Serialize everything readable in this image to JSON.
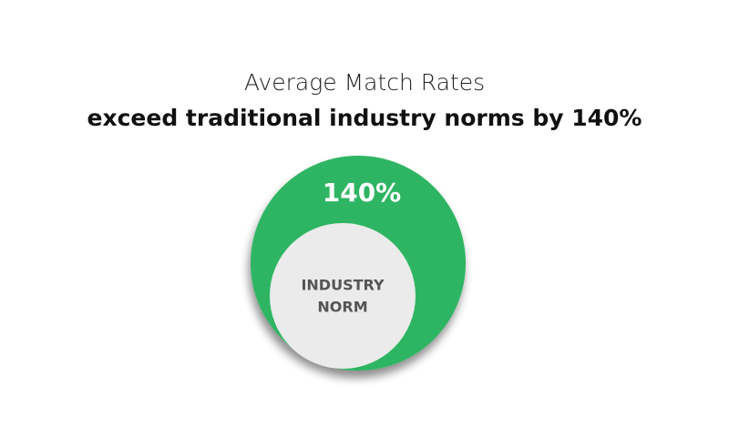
{
  "header": {
    "title": "Average Match Rates",
    "subtitle": "exceed traditional industry norms by 140%"
  },
  "diagram": {
    "outer_label": "140%",
    "inner_label_lines": [
      "INDUSTRY",
      "NORM"
    ]
  }
}
